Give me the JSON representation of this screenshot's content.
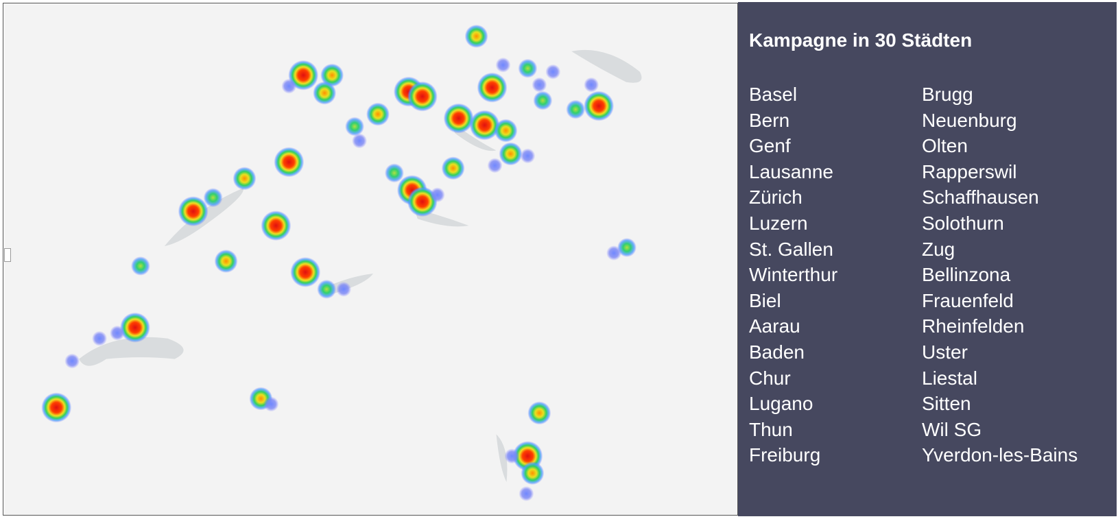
{
  "panel": {
    "title": "Kampagne in 30 Städten",
    "columns": [
      [
        "Basel",
        "Bern",
        "Genf",
        "Lausanne",
        "Zürich",
        "Luzern",
        "St. Gallen",
        "Winterthur",
        "Biel",
        "Aarau",
        "Baden",
        "Chur",
        "Lugano",
        "Thun",
        "Freiburg"
      ],
      [
        "Brugg",
        "Neuenburg",
        "Olten",
        "Rapperswil",
        "Schaffhausen",
        "Solothurn",
        "Zug",
        "Bellinzona",
        "Frauenfeld",
        "Rheinfelden",
        "Uster",
        "Liestal",
        "Sitten",
        "Wil SG",
        "Yverdon-les-Bains"
      ]
    ]
  }
}
